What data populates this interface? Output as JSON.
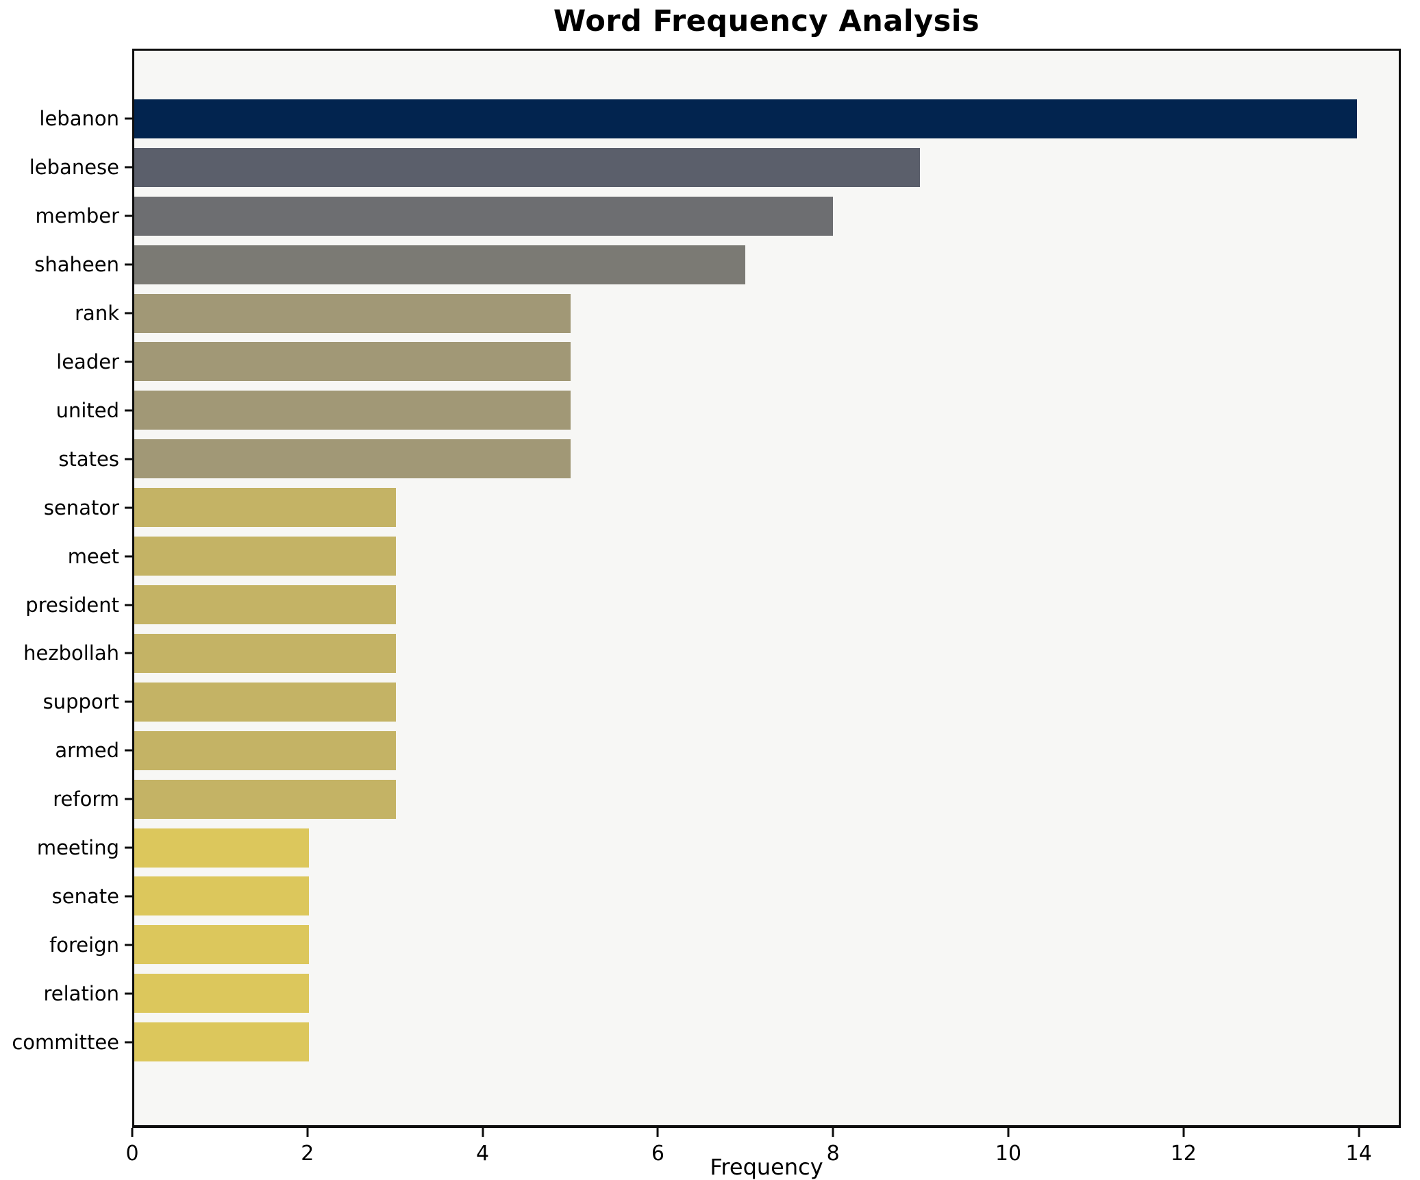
{
  "chart_data": {
    "type": "bar",
    "orientation": "horizontal",
    "title": "Word Frequency Analysis",
    "xlabel": "Frequency",
    "ylabel": "",
    "categories": [
      "lebanon",
      "lebanese",
      "member",
      "shaheen",
      "rank",
      "leader",
      "united",
      "states",
      "senator",
      "meet",
      "president",
      "hezbollah",
      "support",
      "armed",
      "reform",
      "meeting",
      "senate",
      "foreign",
      "relation",
      "committee"
    ],
    "values": [
      14,
      9,
      8,
      7,
      5,
      5,
      5,
      5,
      3,
      3,
      3,
      3,
      3,
      3,
      3,
      2,
      2,
      2,
      2,
      2
    ],
    "bar_colors": [
      "#02244f",
      "#5b5f6b",
      "#6d6e71",
      "#7b7a74",
      "#a19876",
      "#a19876",
      "#a19876",
      "#a19876",
      "#c4b365",
      "#c4b365",
      "#c4b365",
      "#c4b365",
      "#c4b365",
      "#c4b365",
      "#c4b365",
      "#dcc75c",
      "#dcc75c",
      "#dcc75c",
      "#dcc75c",
      "#dcc75c"
    ],
    "xlim": [
      0,
      14.48
    ],
    "xticks": [
      0,
      2,
      4,
      6,
      8,
      10,
      12,
      14
    ],
    "grid": false,
    "legend": null,
    "plot_background": "#f7f7f5",
    "figure_background": "#ffffff",
    "axis_color": "#0d0d0d"
  }
}
